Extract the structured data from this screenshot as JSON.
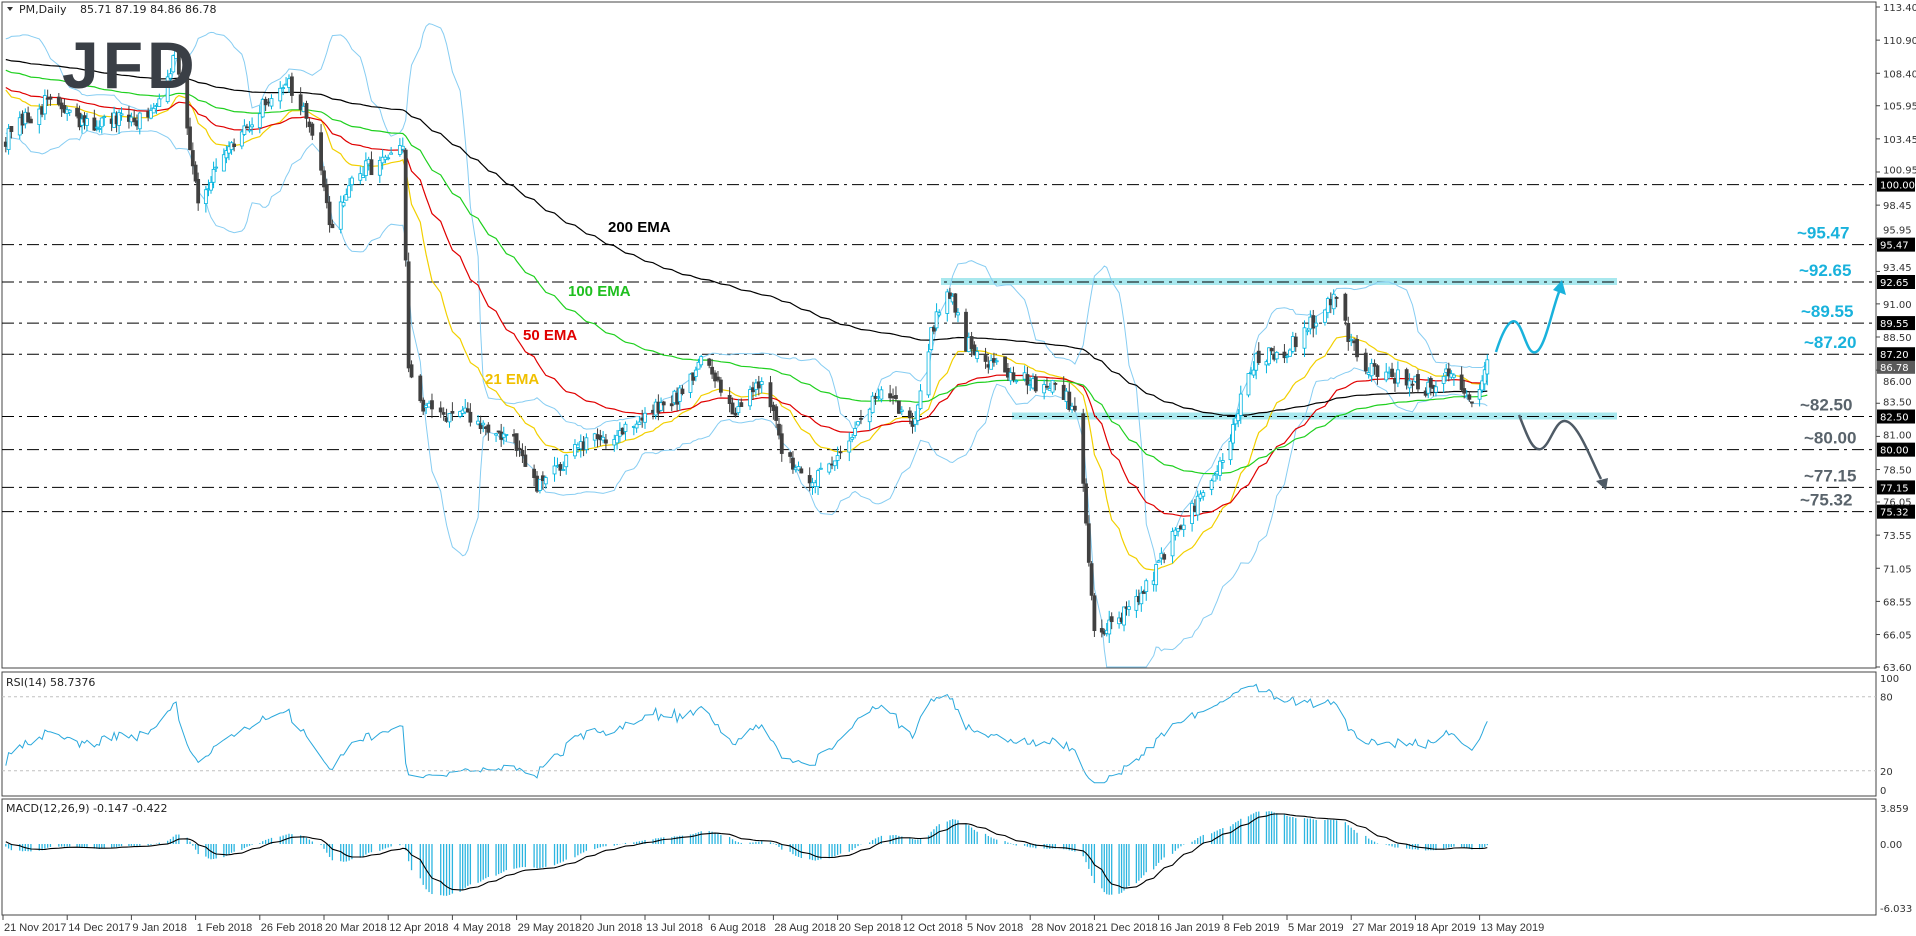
{
  "header": {
    "symbol": "PM,Daily",
    "ohlc": "85.71 87.19 84.86 86.78"
  },
  "logo": {
    "text": "JFD"
  },
  "rsi": {
    "label": "RSI(14) 58.7376",
    "axis": [
      "100",
      "80",
      "20",
      "0"
    ]
  },
  "macd": {
    "label": "MACD(12,26,9) -0.147 -0.422",
    "axis": [
      "3.859",
      "0.00",
      "-6.033"
    ]
  },
  "colors": {
    "bull_candle": "#00b4e0",
    "bear_candle": "#404040",
    "bollinger": "#87cdf2",
    "ema21": "#f2d000",
    "ema50": "#e00000",
    "ema100": "#1fd01f",
    "ema200": "#000000",
    "zone": "#a8e8ee",
    "up_scenario": "#19b2dc",
    "down_scenario": "#4f5b66",
    "annotation_up": "#19b2dc",
    "annotation_down": "#59636b",
    "macd_hist": "#2bb5e0"
  },
  "chart_data": {
    "type": "candlestick",
    "symbol": "PM",
    "timeframe": "Daily",
    "ylim": [
      63.6,
      113.4
    ],
    "price_axis": [
      "113.40",
      "110.90",
      "108.40",
      "105.95",
      "103.45",
      "100.95",
      "98.45",
      "95.95",
      "93.45",
      "91.00",
      "88.50",
      "86.00",
      "83.50",
      "81.00",
      "78.50",
      "76.05",
      "73.55",
      "71.05",
      "68.55",
      "66.05",
      "63.60"
    ],
    "x_axis": [
      {
        "label": "21 Nov 2017",
        "date": "2017-11-21"
      },
      {
        "label": "14 Dec 2017",
        "date": "2017-12-14"
      },
      {
        "label": "9 Jan 2018",
        "date": "2018-01-09"
      },
      {
        "label": "1 Feb 2018",
        "date": "2018-02-01"
      },
      {
        "label": "26 Feb 2018",
        "date": "2018-02-26"
      },
      {
        "label": "20 Mar 2018",
        "date": "2018-03-20"
      },
      {
        "label": "12 Apr 2018",
        "date": "2018-04-12"
      },
      {
        "label": "4 May 2018",
        "date": "2018-05-04"
      },
      {
        "label": "29 May 2018",
        "date": "2018-05-29"
      },
      {
        "label": "20 Jun 2018",
        "date": "2018-06-20"
      },
      {
        "label": "13 Jul 2018",
        "date": "2018-07-13"
      },
      {
        "label": "6 Aug 2018",
        "date": "2018-08-06"
      },
      {
        "label": "28 Aug 2018",
        "date": "2018-08-28"
      },
      {
        "label": "20 Sep 2018",
        "date": "2018-09-20"
      },
      {
        "label": "12 Oct 2018",
        "date": "2018-10-12"
      },
      {
        "label": "5 Nov 2018",
        "date": "2018-11-05"
      },
      {
        "label": "28 Nov 2018",
        "date": "2018-11-28"
      },
      {
        "label": "21 Dec 2018",
        "date": "2018-12-21"
      },
      {
        "label": "16 Jan 2019",
        "date": "2019-01-16"
      },
      {
        "label": "8 Feb 2019",
        "date": "2019-02-08"
      },
      {
        "label": "5 Mar 2019",
        "date": "2019-03-05"
      },
      {
        "label": "27 Mar 2019",
        "date": "2019-03-27"
      },
      {
        "label": "18 Apr 2019",
        "date": "2019-04-18"
      },
      {
        "label": "13 May 2019",
        "date": "2019-05-13"
      }
    ],
    "last_bar": {
      "open": 85.71,
      "high": 87.19,
      "low": 84.86,
      "close": 86.78
    },
    "closes": [
      {
        "date": "2017-11-22",
        "close": 103.5
      },
      {
        "date": "2017-12-08",
        "close": 106.5
      },
      {
        "date": "2017-12-19",
        "close": 104.5
      },
      {
        "date": "2018-01-15",
        "close": 105.0
      },
      {
        "date": "2018-01-25",
        "close": 110.0
      },
      {
        "date": "2018-02-02",
        "close": 99.0
      },
      {
        "date": "2018-02-09",
        "close": 101.0
      },
      {
        "date": "2018-02-20",
        "close": 104.0
      },
      {
        "date": "2018-03-07",
        "close": 108.0
      },
      {
        "date": "2018-03-16",
        "close": 104.0
      },
      {
        "date": "2018-03-22",
        "close": 97.0
      },
      {
        "date": "2018-04-02",
        "close": 101.0
      },
      {
        "date": "2018-04-17",
        "close": 102.5
      },
      {
        "date": "2018-04-19",
        "close": 86.0
      },
      {
        "date": "2018-04-24",
        "close": 83.0
      },
      {
        "date": "2018-05-09",
        "close": 82.5
      },
      {
        "date": "2018-05-28",
        "close": 80.5
      },
      {
        "date": "2018-06-05",
        "close": 77.0
      },
      {
        "date": "2018-06-18",
        "close": 80.0
      },
      {
        "date": "2018-07-05",
        "close": 81.5
      },
      {
        "date": "2018-07-25",
        "close": 84.0
      },
      {
        "date": "2018-08-03",
        "close": 86.8
      },
      {
        "date": "2018-08-15",
        "close": 83.0
      },
      {
        "date": "2018-08-24",
        "close": 85.5
      },
      {
        "date": "2018-08-31",
        "close": 80.0
      },
      {
        "date": "2018-09-12",
        "close": 77.5
      },
      {
        "date": "2018-09-24",
        "close": 81.0
      },
      {
        "date": "2018-10-05",
        "close": 84.5
      },
      {
        "date": "2018-10-16",
        "close": 82.0
      },
      {
        "date": "2018-10-25",
        "close": 90.5
      },
      {
        "date": "2018-10-30",
        "close": 92.0
      },
      {
        "date": "2018-11-05",
        "close": 88.0
      },
      {
        "date": "2018-11-19",
        "close": 86.0
      },
      {
        "date": "2018-11-28",
        "close": 85.0
      },
      {
        "date": "2018-12-07",
        "close": 85.0
      },
      {
        "date": "2018-12-14",
        "close": 83.0
      },
      {
        "date": "2018-12-18",
        "close": 75.0
      },
      {
        "date": "2018-12-21",
        "close": 66.0
      },
      {
        "date": "2018-12-27",
        "close": 67.0
      },
      {
        "date": "2019-01-08",
        "close": 68.5
      },
      {
        "date": "2019-01-15",
        "close": 71.0
      },
      {
        "date": "2019-01-23",
        "close": 74.0
      },
      {
        "date": "2019-02-04",
        "close": 77.5
      },
      {
        "date": "2019-02-08",
        "close": 79.0
      },
      {
        "date": "2019-02-14",
        "close": 83.0
      },
      {
        "date": "2019-02-21",
        "close": 87.0
      },
      {
        "date": "2019-03-05",
        "close": 87.5
      },
      {
        "date": "2019-03-15",
        "close": 90.0
      },
      {
        "date": "2019-03-22",
        "close": 92.0
      },
      {
        "date": "2019-03-27",
        "close": 88.0
      },
      {
        "date": "2019-04-02",
        "close": 86.0
      },
      {
        "date": "2019-04-12",
        "close": 85.5
      },
      {
        "date": "2019-04-22",
        "close": 84.5
      },
      {
        "date": "2019-05-01",
        "close": 86.0
      },
      {
        "date": "2019-05-08",
        "close": 83.5
      },
      {
        "date": "2019-05-14",
        "close": 85.0
      },
      {
        "date": "2019-05-16",
        "close": 86.78
      }
    ],
    "ema_labels": [
      {
        "text": "200 EMA",
        "color": "#000000"
      },
      {
        "text": "100 EMA",
        "color": "#1fbf1f"
      },
      {
        "text": "50 EMA",
        "color": "#e00000"
      },
      {
        "text": "21 EMA",
        "color": "#f0c000"
      }
    ],
    "levels": [
      {
        "value": 100.0,
        "box": "100.00",
        "annotation": ""
      },
      {
        "value": 95.47,
        "box": "95.47",
        "annotation": "~95.47",
        "tone": "up"
      },
      {
        "value": 92.65,
        "box": "92.65",
        "annotation": "~92.65",
        "tone": "up"
      },
      {
        "value": 89.55,
        "box": "89.55",
        "annotation": "~89.55",
        "tone": "up"
      },
      {
        "value": 87.2,
        "box": "87.20",
        "annotation": "~87.20",
        "tone": "up"
      },
      {
        "value": 82.5,
        "box": "82.50",
        "annotation": "~82.50",
        "tone": "down"
      },
      {
        "value": 80.0,
        "box": "80.00",
        "annotation": "~80.00",
        "tone": "down"
      },
      {
        "value": 77.15,
        "box": "77.15",
        "annotation": "~77.15",
        "tone": "down"
      },
      {
        "value": 75.32,
        "box": "75.32",
        "annotation": "~75.32",
        "tone": "down"
      }
    ],
    "current_price": {
      "value": 86.78,
      "box": "86.78"
    },
    "zones": [
      92.65,
      82.5
    ],
    "scenarios": [
      {
        "direction": "up",
        "target": 92.65
      },
      {
        "direction": "down",
        "target": 77.15
      }
    ]
  }
}
